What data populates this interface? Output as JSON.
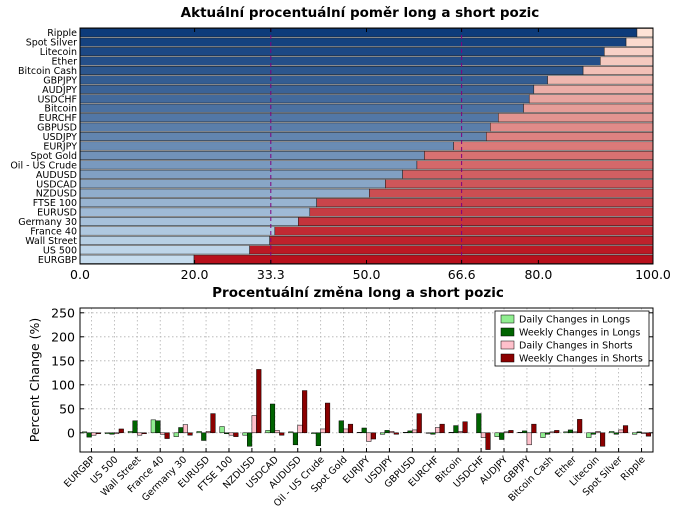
{
  "chart_data": [
    {
      "type": "bar",
      "orientation": "horizontal",
      "stacked": true,
      "title": "Aktuální procentuální poměr long a short pozic",
      "categories": [
        "Ripple",
        "Spot Silver",
        "Litecoin",
        "Ether",
        "Bitcoin Cash",
        "GBPJPY",
        "AUDJPY",
        "USDCHF",
        "Bitcoin",
        "EURCHF",
        "GBPUSD",
        "USDJPY",
        "EURJPY",
        "Spot Gold",
        "Oil - US Crude",
        "AUDUSD",
        "USDCAD",
        "NZDUSD",
        "FTSE 100",
        "EURUSD",
        "Germany 30",
        "France 40",
        "Wall Street",
        "US 500",
        "EURGBP"
      ],
      "series": [
        {
          "values": [
            97.2,
            95.3,
            91.5,
            90.8,
            87.8,
            81.6,
            79.2,
            78.4,
            77.4,
            73.0,
            71.6,
            70.9,
            65.2,
            60.1,
            58.8,
            56.3,
            53.3,
            50.5,
            41.3,
            40.1,
            38.1,
            34.0,
            33.1,
            29.6,
            19.9
          ]
        },
        {
          "values": [
            2.8,
            4.7,
            8.5,
            9.2,
            12.2,
            18.4,
            20.8,
            21.6,
            22.6,
            27.0,
            28.4,
            29.1,
            34.8,
            39.9,
            41.2,
            43.7,
            46.7,
            49.5,
            58.7,
            59.9,
            61.9,
            66.0,
            66.9,
            70.4,
            80.1
          ]
        }
      ],
      "xlim": [
        0,
        100
      ],
      "x_ticks": [
        "0.0",
        "20.0",
        "33.3",
        "50.0",
        "66.6",
        "80.0",
        "100.0"
      ],
      "highlight_ticks": [
        "33.3",
        "66.6"
      ],
      "reference_lines": [
        33.3,
        66.6
      ],
      "long_color_dark": "#0d3b7a",
      "long_color_light": "#c6dcee",
      "short_color_light": "#fde3d6",
      "short_color_dark": "#b8101c",
      "highlight_color": "#800080",
      "grid": false
    },
    {
      "type": "bar",
      "title": "Procentuální změna long a short pozic",
      "ylabel": "Percent Change (%)",
      "ylim": [
        -40,
        260
      ],
      "y_ticks": [
        "0",
        "50",
        "100",
        "150",
        "200",
        "250"
      ],
      "grid": true,
      "legend_position": "top-right",
      "categories": [
        "EURGBP",
        "US 500",
        "Wall Street",
        "France 40",
        "Germany 30",
        "EURUSD",
        "FTSE 100",
        "NZDUSD",
        "USDCAD",
        "AUDUSD",
        "Oil - US Crude",
        "Spot Gold",
        "EURJPY",
        "USDJPY",
        "GBPUSD",
        "EURCHF",
        "Bitcoin",
        "USDCHF",
        "AUDJPY",
        "GBPJPY",
        "Bitcoin Cash",
        "Ether",
        "Litecoin",
        "Spot Silver",
        "Ripple"
      ],
      "series": [
        {
          "name": "Daily Changes in Longs",
          "color": "#90ee90",
          "values": [
            2,
            -2,
            3,
            27,
            -8,
            3,
            13,
            -5,
            5,
            2,
            -2,
            0,
            1,
            -3,
            1,
            -1,
            1,
            0,
            -8,
            1,
            -10,
            2,
            -10,
            3,
            -3
          ]
        },
        {
          "name": "Weekly Changes in Longs",
          "color": "#006400",
          "values": [
            -9,
            -3,
            25,
            25,
            11,
            -16,
            -2,
            -28,
            60,
            -25,
            -27,
            25,
            10,
            5,
            4,
            -3,
            15,
            40,
            -14,
            4,
            -3,
            6,
            -3,
            -3,
            2
          ]
        },
        {
          "name": "Daily Changes in Shorts",
          "color": "#ffc0cb",
          "values": [
            -5,
            -2,
            -5,
            -3,
            17,
            3,
            -5,
            36,
            5,
            16,
            8,
            8,
            -18,
            3,
            6,
            11,
            3,
            -10,
            2,
            -25,
            2,
            2,
            3,
            6,
            -2
          ]
        },
        {
          "name": "Weekly Changes in Shorts",
          "color": "#8b0000",
          "values": [
            -2,
            8,
            -2,
            -12,
            -5,
            40,
            -8,
            132,
            -5,
            88,
            62,
            18,
            -13,
            -3,
            40,
            18,
            23,
            -35,
            5,
            18,
            5,
            28,
            -28,
            15,
            -7
          ]
        }
      ]
    }
  ]
}
